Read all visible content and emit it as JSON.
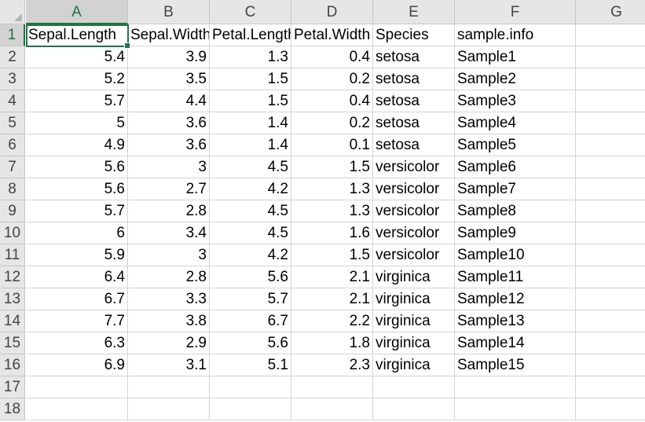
{
  "columns": [
    "A",
    "B",
    "C",
    "D",
    "E",
    "F",
    "G"
  ],
  "row_numbers": [
    "1",
    "2",
    "3",
    "4",
    "5",
    "6",
    "7",
    "8",
    "9",
    "10",
    "11",
    "12",
    "13",
    "14",
    "15",
    "16",
    "17",
    "18"
  ],
  "selected_cell": "A1",
  "accent_color": "#217346",
  "header_row": [
    "Sepal.Length",
    "Sepal.Width",
    "Petal.Length",
    "Petal.Width",
    "Species",
    "sample.info"
  ],
  "rows": [
    [
      "5.4",
      "3.9",
      "1.3",
      "0.4",
      "setosa",
      "Sample1"
    ],
    [
      "5.2",
      "3.5",
      "1.5",
      "0.2",
      "setosa",
      "Sample2"
    ],
    [
      "5.7",
      "4.4",
      "1.5",
      "0.4",
      "setosa",
      "Sample3"
    ],
    [
      "5",
      "3.6",
      "1.4",
      "0.2",
      "setosa",
      "Sample4"
    ],
    [
      "4.9",
      "3.6",
      "1.4",
      "0.1",
      "setosa",
      "Sample5"
    ],
    [
      "5.6",
      "3",
      "4.5",
      "1.5",
      "versicolor",
      "Sample6"
    ],
    [
      "5.6",
      "2.7",
      "4.2",
      "1.3",
      "versicolor",
      "Sample7"
    ],
    [
      "5.7",
      "2.8",
      "4.5",
      "1.3",
      "versicolor",
      "Sample8"
    ],
    [
      "6",
      "3.4",
      "4.5",
      "1.6",
      "versicolor",
      "Sample9"
    ],
    [
      "5.9",
      "3",
      "4.2",
      "1.5",
      "versicolor",
      "Sample10"
    ],
    [
      "6.4",
      "2.8",
      "5.6",
      "2.1",
      "virginica",
      "Sample11"
    ],
    [
      "6.7",
      "3.3",
      "5.7",
      "2.1",
      "virginica",
      "Sample12"
    ],
    [
      "7.7",
      "3.8",
      "6.7",
      "2.2",
      "virginica",
      "Sample13"
    ],
    [
      "6.3",
      "2.9",
      "5.6",
      "1.8",
      "virginica",
      "Sample14"
    ],
    [
      "6.9",
      "3.1",
      "5.1",
      "2.3",
      "virginica",
      "Sample15"
    ]
  ]
}
